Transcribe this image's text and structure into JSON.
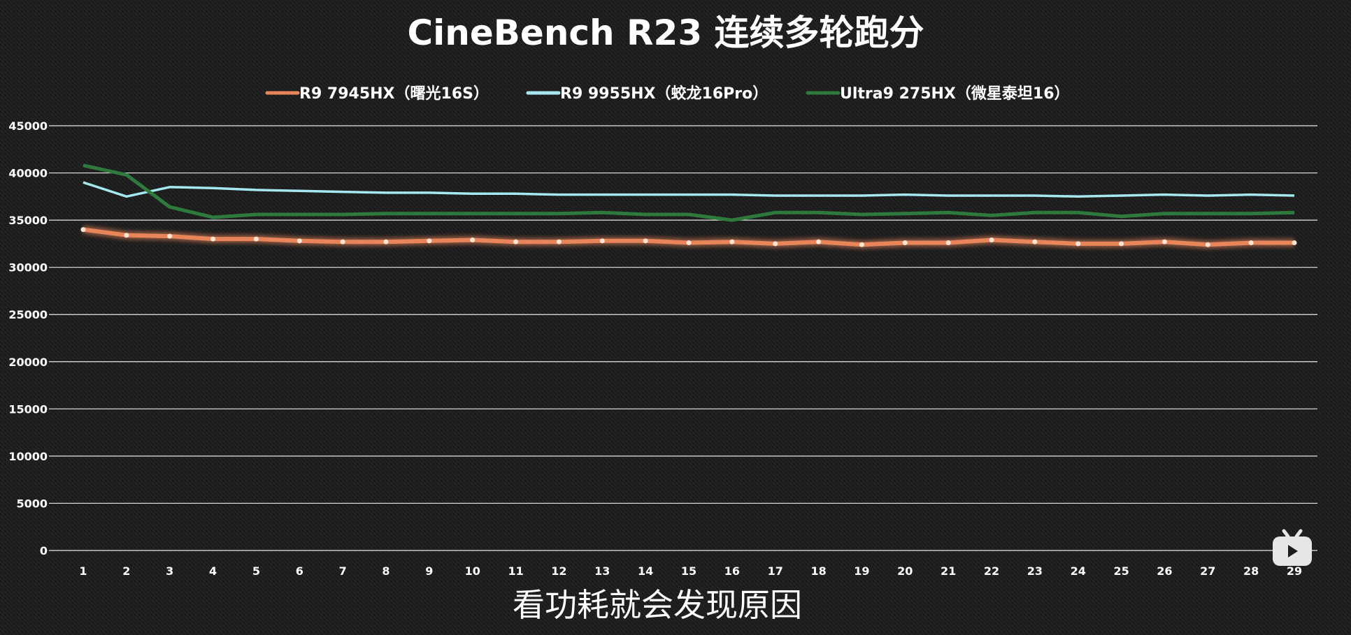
{
  "chart_data": {
    "type": "line",
    "title": "CineBench R23 连续多轮跑分",
    "xlabel": "",
    "ylabel": "",
    "x": [
      "1",
      "2",
      "3",
      "4",
      "5",
      "6",
      "7",
      "8",
      "9",
      "10",
      "11",
      "12",
      "13",
      "14",
      "15",
      "16",
      "17",
      "18",
      "19",
      "20",
      "21",
      "22",
      "23",
      "24",
      "25",
      "26",
      "27",
      "28",
      "29"
    ],
    "ylim": [
      0,
      45000
    ],
    "yticks": [
      0,
      5000,
      10000,
      15000,
      20000,
      25000,
      30000,
      35000,
      40000,
      45000
    ],
    "grid": true,
    "legend_position": "top-center",
    "series": [
      {
        "name": "R9 7945HX（曙光16S）",
        "color": "#e8855a",
        "values": [
          34000,
          33400,
          33300,
          33000,
          33000,
          32800,
          32700,
          32700,
          32800,
          32900,
          32700,
          32700,
          32800,
          32800,
          32600,
          32700,
          32500,
          32700,
          32400,
          32600,
          32600,
          32900,
          32700,
          32500,
          32500,
          32700,
          32400,
          32600,
          32600
        ]
      },
      {
        "name": "R9 9955HX（蛟龙16Pro）",
        "color": "#a6e8f0",
        "values": [
          39000,
          37500,
          38500,
          38400,
          38200,
          38100,
          38000,
          37900,
          37900,
          37800,
          37800,
          37700,
          37700,
          37700,
          37700,
          37700,
          37600,
          37600,
          37600,
          37700,
          37600,
          37600,
          37600,
          37500,
          37600,
          37700,
          37600,
          37700,
          37600
        ]
      },
      {
        "name": "Ultra9 275HX（微星泰坦16）",
        "color": "#2e7a3c",
        "values": [
          40800,
          39800,
          36400,
          35300,
          35600,
          35600,
          35600,
          35700,
          35700,
          35700,
          35700,
          35700,
          35800,
          35600,
          35600,
          35000,
          35800,
          35800,
          35600,
          35700,
          35800,
          35500,
          35800,
          35800,
          35400,
          35700,
          35700,
          35700,
          35800
        ]
      }
    ]
  },
  "subtitle_caption": "看功耗就会发现原因",
  "watermark": {
    "icon": "bilibili-tv-icon"
  }
}
